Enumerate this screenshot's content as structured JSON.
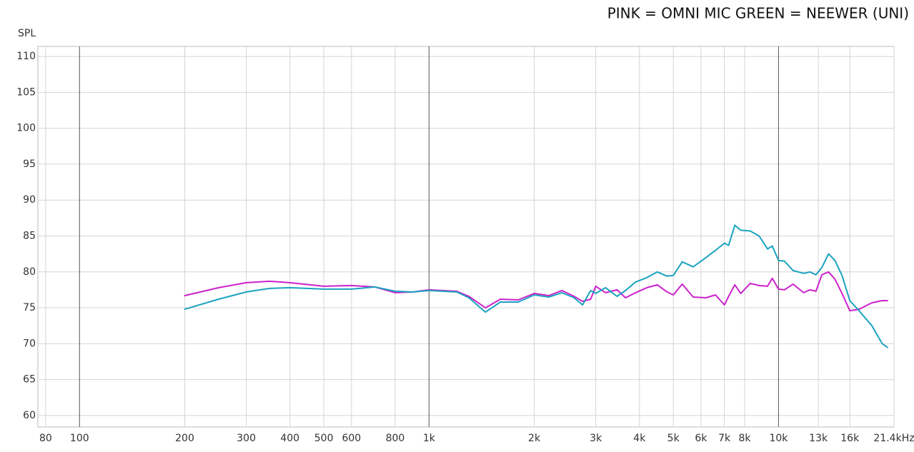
{
  "chart_data": {
    "type": "line",
    "title": "PINK = OMNI MIC GREEN = NEEWER (UNI)",
    "ylabel": "SPL",
    "xscale": "log",
    "grid": true,
    "xlim": [
      76,
      21400
    ],
    "ylim": [
      58.4,
      111.4
    ],
    "xticks": [
      80,
      100,
      200,
      300,
      400,
      500,
      600,
      800,
      {
        "value": 1000,
        "label": "1k"
      },
      {
        "value": 2000,
        "label": "2k"
      },
      {
        "value": 3000,
        "label": "3k"
      },
      {
        "value": 4000,
        "label": "4k"
      },
      {
        "value": 5000,
        "label": "5k"
      },
      {
        "value": 6000,
        "label": "6k"
      },
      {
        "value": 7000,
        "label": "7k"
      },
      {
        "value": 8000,
        "label": "8k"
      },
      {
        "value": 10000,
        "label": "10k"
      },
      {
        "value": 13000,
        "label": "13k"
      },
      {
        "value": 16000,
        "label": "16k"
      },
      {
        "value": 21400,
        "label": "21.4kHz"
      }
    ],
    "yticks": [
      60,
      65,
      70,
      75,
      80,
      85,
      90,
      95,
      100,
      105,
      110
    ],
    "x": [
      200,
      250,
      300,
      350,
      400,
      500,
      600,
      700,
      800,
      900,
      1000,
      1200,
      1300,
      1450,
      1600,
      1800,
      2000,
      2200,
      2400,
      2600,
      2750,
      2900,
      3000,
      3200,
      3450,
      3650,
      3900,
      4200,
      4500,
      4800,
      5000,
      5300,
      5700,
      6200,
      6600,
      7000,
      7200,
      7500,
      7800,
      8300,
      8800,
      9300,
      9600,
      10000,
      10400,
      11000,
      11800,
      12300,
      12800,
      13300,
      13900,
      14500,
      15200,
      16000,
      17000,
      18500,
      19800,
      20500
    ],
    "series": [
      {
        "name": "PINK = OMNI MIC",
        "color": "#cc22cc",
        "values": [
          76.7,
          77.8,
          78.5,
          78.7,
          78.5,
          78.0,
          78.1,
          77.9,
          77.1,
          77.2,
          77.5,
          77.3,
          76.6,
          75.0,
          76.2,
          76.1,
          77.0,
          76.7,
          77.4,
          76.6,
          75.9,
          76.2,
          78.0,
          77.1,
          77.5,
          76.4,
          77.1,
          77.8,
          78.2,
          77.2,
          76.8,
          78.3,
          76.5,
          76.4,
          76.8,
          75.4,
          76.6,
          78.2,
          77.0,
          78.4,
          78.1,
          78.0,
          79.1,
          77.6,
          77.5,
          78.3,
          77.1,
          77.5,
          77.3,
          79.6,
          80.0,
          79.0,
          77.0,
          74.6,
          74.8,
          75.7,
          76.0,
          76.0
        ]
      },
      {
        "name": "GREEN = NEEWER (UNI)",
        "color": "#1aa3c0",
        "values": [
          74.8,
          76.2,
          77.2,
          77.7,
          77.8,
          77.6,
          77.6,
          77.9,
          77.3,
          77.2,
          77.4,
          77.2,
          76.4,
          74.4,
          75.8,
          75.8,
          76.8,
          76.5,
          77.1,
          76.4,
          75.4,
          77.4,
          77.0,
          77.8,
          76.6,
          77.4,
          78.6,
          79.2,
          80.0,
          79.4,
          79.5,
          81.4,
          80.7,
          82.0,
          83.0,
          84.0,
          83.7,
          86.5,
          85.8,
          85.7,
          85.0,
          83.2,
          83.6,
          81.6,
          81.5,
          80.2,
          79.8,
          80.0,
          79.6,
          80.6,
          82.5,
          81.6,
          79.5,
          76.0,
          74.6,
          72.5,
          70.0,
          69.5
        ]
      }
    ]
  }
}
